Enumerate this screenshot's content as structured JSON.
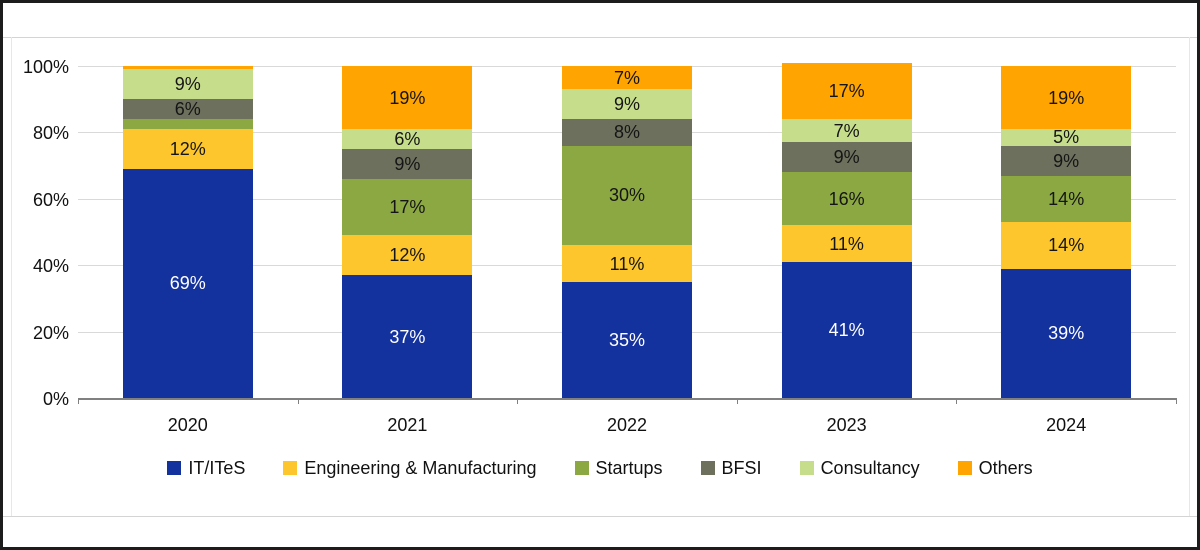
{
  "chart_data": {
    "type": "bar",
    "stacked": true,
    "percent_stacked": true,
    "title": "",
    "xlabel": "",
    "ylabel": "",
    "categories": [
      "2020",
      "2021",
      "2022",
      "2023",
      "2024"
    ],
    "series": [
      {
        "name": "IT/ITeS",
        "color": "#14329E",
        "label_color": "#ffffff",
        "values": [
          69,
          37,
          35,
          41,
          39
        ]
      },
      {
        "name": "Engineering & Manufacturing",
        "color": "#FDC62D",
        "label_color": "#151515",
        "values": [
          12,
          12,
          11,
          11,
          14
        ]
      },
      {
        "name": "Startups",
        "color": "#8CA843",
        "label_color": "#151515",
        "values": [
          3,
          17,
          30,
          16,
          14
        ]
      },
      {
        "name": "BFSI",
        "color": "#6C705D",
        "label_color": "#151515",
        "values": [
          6,
          9,
          8,
          9,
          9
        ]
      },
      {
        "name": "Consultancy",
        "color": "#C6DE8C",
        "label_color": "#151515",
        "values": [
          9,
          6,
          9,
          7,
          5
        ]
      },
      {
        "name": "Others",
        "color": "#FFA400",
        "label_color": "#151515",
        "values": [
          1,
          19,
          7,
          17,
          19
        ]
      }
    ],
    "data_label_suffix": "%",
    "data_label_min_value": 5,
    "y_axis": {
      "min": 0,
      "max": 100,
      "step": 20,
      "tick_labels": [
        "0%",
        "20%",
        "40%",
        "60%",
        "80%",
        "100%"
      ]
    },
    "grid": true,
    "legend_position": "bottom",
    "legend_items": [
      "IT/ITeS",
      "Engineering & Manufacturing",
      "Startups",
      "BFSI",
      "Consultancy",
      "Others"
    ]
  },
  "colors": {
    "gridline": "#D9D9D9",
    "axis": "#808080",
    "frame_border": "#1C1C1C",
    "panel_border": "#D4D4D4",
    "background": "#FFFFFF"
  }
}
